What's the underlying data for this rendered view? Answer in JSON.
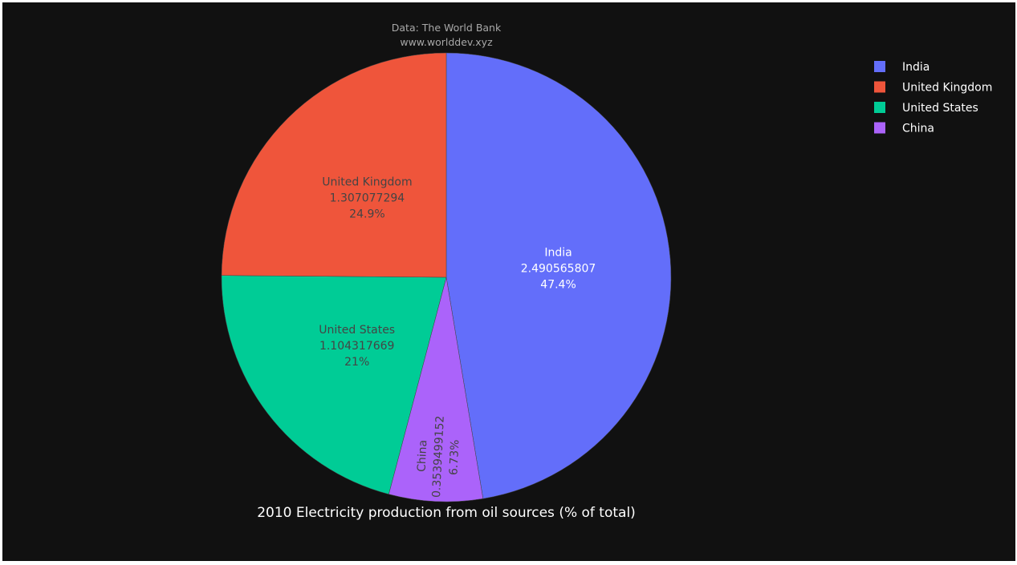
{
  "chart_data": {
    "type": "pie",
    "title": "2010 Electricity production from oil sources (% of total)",
    "source": [
      "Data: The World Bank",
      "www.worlddev.xyz"
    ],
    "slices": [
      {
        "label": "India",
        "value": 2.490565807,
        "percent_text": "47.4%",
        "color": "#636efa",
        "text_color": "#ffffff"
      },
      {
        "label": "China",
        "value": 0.3539499152,
        "percent_text": "6.73%",
        "color": "#ab63fa",
        "text_color": "#444444"
      },
      {
        "label": "United States",
        "value": 1.104317669,
        "percent_text": "21%",
        "color": "#00cc96",
        "text_color": "#444444"
      },
      {
        "label": "United Kingdom",
        "value": 1.307077294,
        "percent_text": "24.9%",
        "color": "#ef553b",
        "text_color": "#444444"
      }
    ],
    "legend": [
      "India",
      "United Kingdom",
      "United States",
      "China"
    ],
    "legend_placement": "top-right",
    "direction": "clockwise",
    "background": "#111111"
  }
}
